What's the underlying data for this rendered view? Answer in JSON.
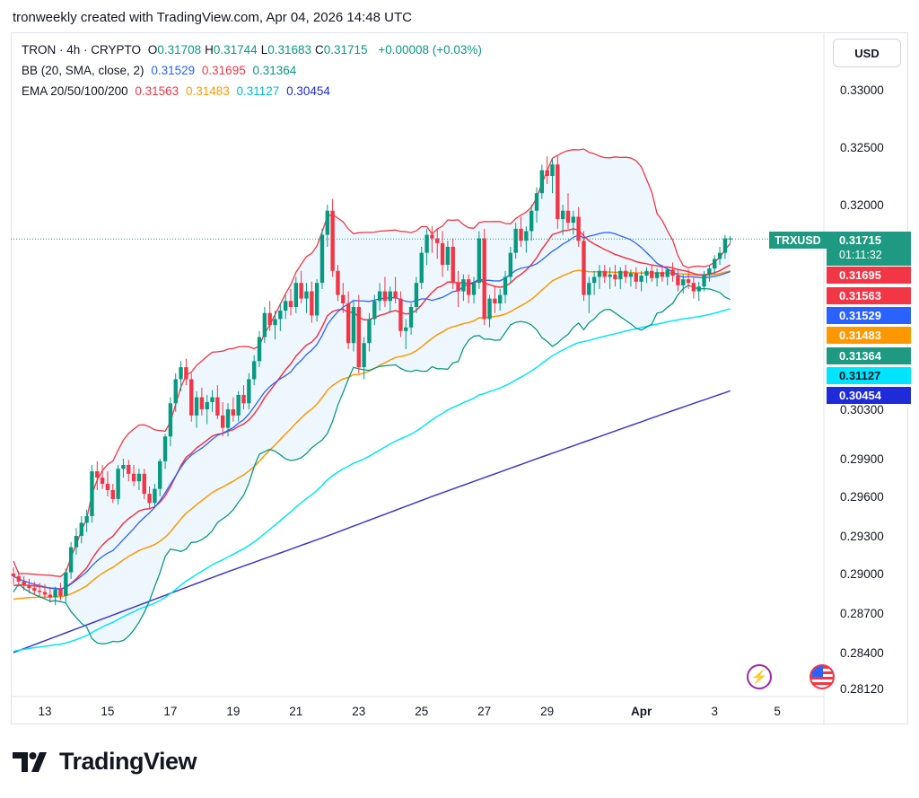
{
  "header": {
    "caption": "tronweekly created with TradingView.com, Apr 04, 2026 14:48 UTC"
  },
  "legend": {
    "symbol": "TRON · 4h · CRYPTO",
    "ohlc": [
      {
        "k": "O",
        "v": "0.31708"
      },
      {
        "k": "H",
        "v": "0.31744"
      },
      {
        "k": "L",
        "v": "0.31683"
      },
      {
        "k": "C",
        "v": "0.31715"
      }
    ],
    "change": "+0.00008 (+0.03%)",
    "bb_label": "BB (20, SMA, close, 2)",
    "bb_values": [
      "0.31529",
      "0.31695",
      "0.31364"
    ],
    "ema_label": "EMA 20/50/100/200",
    "ema_values": [
      "0.31563",
      "0.31483",
      "0.31127",
      "0.30454"
    ]
  },
  "currency_button": "USD",
  "ticker": "TRXUSD",
  "last_price": "0.31715",
  "countdown": "01:11:32",
  "price_tags": [
    {
      "value": "0.31695",
      "color": "#f23645"
    },
    {
      "value": "0.31563",
      "color": "#f23645"
    },
    {
      "value": "0.31529",
      "color": "#2962ff"
    },
    {
      "value": "0.31483",
      "color": "#ff9800"
    },
    {
      "value": "0.31364",
      "color": "#1f9a82"
    },
    {
      "value": "0.31127",
      "color": "#00e5ff"
    },
    {
      "value": "0.30454",
      "color": "#1f2bd8"
    }
  ],
  "brand": {
    "name": "TradingView"
  },
  "icons": {
    "alert": "lightning-icon",
    "event": "us-flag-icon",
    "logo": "tradingview-logo-icon"
  },
  "colors": {
    "up": "#089981",
    "down": "#f23645",
    "bb_basis": "#2962ff",
    "bb_upper": "#f23645",
    "bb_lower": "#089981",
    "bb_fill": "#e3f2fd",
    "ema20": "#f23645",
    "ema50": "#ff9800",
    "ema100": "#00e5ff",
    "ema200": "#3f37c9"
  },
  "chart_data": {
    "type": "candlestick",
    "timeframe": "4h",
    "y_axis_ticks": [
      "0.33000",
      "0.32500",
      "0.32000",
      "0.30300",
      "0.29900",
      "0.29600",
      "0.29300",
      "0.29000",
      "0.28700",
      "0.28400",
      "0.28120"
    ],
    "y_axis_tick_values": [
      0.33,
      0.325,
      0.32,
      0.303,
      0.299,
      0.296,
      0.293,
      0.29,
      0.287,
      0.284,
      0.2812
    ],
    "x_axis_ticks": [
      "13",
      "15",
      "17",
      "19",
      "21",
      "23",
      "25",
      "27",
      "29",
      "Apr",
      "3",
      "5"
    ],
    "x_axis_tick_bars": [
      6,
      18,
      30,
      42,
      54,
      66,
      78,
      90,
      102,
      120,
      134,
      146
    ],
    "candles_ohlc": [
      [
        0.29,
        0.2905,
        0.2892,
        0.2898
      ],
      [
        0.2898,
        0.2902,
        0.289,
        0.2894
      ],
      [
        0.2894,
        0.2898,
        0.2887,
        0.2891
      ],
      [
        0.2891,
        0.2896,
        0.2885,
        0.2889
      ],
      [
        0.2889,
        0.2894,
        0.2884,
        0.2887
      ],
      [
        0.2887,
        0.2893,
        0.2883,
        0.2886
      ],
      [
        0.2886,
        0.2892,
        0.2881,
        0.2884
      ],
      [
        0.2884,
        0.289,
        0.2878,
        0.2882
      ],
      [
        0.2882,
        0.289,
        0.2876,
        0.2888
      ],
      [
        0.2888,
        0.2893,
        0.288,
        0.2883
      ],
      [
        0.2883,
        0.2904,
        0.2878,
        0.2901
      ],
      [
        0.2901,
        0.2925,
        0.2896,
        0.2921
      ],
      [
        0.2921,
        0.2936,
        0.2915,
        0.293
      ],
      [
        0.293,
        0.2945,
        0.2924,
        0.294
      ],
      [
        0.294,
        0.295,
        0.2933,
        0.2945
      ],
      [
        0.2945,
        0.2985,
        0.294,
        0.298
      ],
      [
        0.298,
        0.2988,
        0.2965,
        0.2975
      ],
      [
        0.2975,
        0.2985,
        0.2966,
        0.297
      ],
      [
        0.297,
        0.298,
        0.296,
        0.2965
      ],
      [
        0.2965,
        0.297,
        0.2955,
        0.2958
      ],
      [
        0.2958,
        0.2985,
        0.2954,
        0.2982
      ],
      [
        0.2982,
        0.299,
        0.2975,
        0.2985
      ],
      [
        0.2985,
        0.2989,
        0.2972,
        0.2978
      ],
      [
        0.2978,
        0.2985,
        0.2968,
        0.2972
      ],
      [
        0.2972,
        0.2982,
        0.2965,
        0.2978
      ],
      [
        0.2978,
        0.2982,
        0.2958,
        0.2962
      ],
      [
        0.2962,
        0.2968,
        0.295,
        0.2955
      ],
      [
        0.2955,
        0.297,
        0.2952,
        0.2966
      ],
      [
        0.2966,
        0.299,
        0.296,
        0.2988
      ],
      [
        0.2988,
        0.301,
        0.2982,
        0.3008
      ],
      [
        0.3008,
        0.304,
        0.3,
        0.3035
      ],
      [
        0.3035,
        0.306,
        0.3028,
        0.3055
      ],
      [
        0.3055,
        0.307,
        0.3045,
        0.3065
      ],
      [
        0.3065,
        0.3072,
        0.305,
        0.3055
      ],
      [
        0.3055,
        0.306,
        0.302,
        0.3025
      ],
      [
        0.3025,
        0.3045,
        0.3015,
        0.304
      ],
      [
        0.304,
        0.3048,
        0.3025,
        0.303
      ],
      [
        0.303,
        0.3042,
        0.3018,
        0.3036
      ],
      [
        0.3036,
        0.3046,
        0.3028,
        0.304
      ],
      [
        0.304,
        0.305,
        0.3022,
        0.3025
      ],
      [
        0.3025,
        0.3036,
        0.3008,
        0.3015
      ],
      [
        0.3015,
        0.3035,
        0.3008,
        0.303
      ],
      [
        0.303,
        0.304,
        0.302,
        0.3025
      ],
      [
        0.3025,
        0.3045,
        0.302,
        0.3042
      ],
      [
        0.3042,
        0.305,
        0.303,
        0.3035
      ],
      [
        0.3035,
        0.306,
        0.303,
        0.3055
      ],
      [
        0.3055,
        0.3075,
        0.305,
        0.307
      ],
      [
        0.307,
        0.3095,
        0.3065,
        0.309
      ],
      [
        0.309,
        0.3115,
        0.3085,
        0.311
      ],
      [
        0.311,
        0.312,
        0.3095,
        0.31
      ],
      [
        0.31,
        0.3112,
        0.3088,
        0.3105
      ],
      [
        0.3105,
        0.3118,
        0.3095,
        0.3112
      ],
      [
        0.3112,
        0.3125,
        0.3105,
        0.312
      ],
      [
        0.312,
        0.313,
        0.3108,
        0.3115
      ],
      [
        0.3115,
        0.314,
        0.311,
        0.3135
      ],
      [
        0.3135,
        0.3145,
        0.3118,
        0.3122
      ],
      [
        0.3122,
        0.3135,
        0.311,
        0.3128
      ],
      [
        0.3128,
        0.3136,
        0.3102,
        0.3108
      ],
      [
        0.3108,
        0.3138,
        0.3103,
        0.3135
      ],
      [
        0.3135,
        0.318,
        0.313,
        0.3175
      ],
      [
        0.3175,
        0.32,
        0.3165,
        0.3195
      ],
      [
        0.3195,
        0.3205,
        0.314,
        0.3145
      ],
      [
        0.3145,
        0.315,
        0.312,
        0.3125
      ],
      [
        0.3125,
        0.3135,
        0.311,
        0.3118
      ],
      [
        0.3118,
        0.3128,
        0.308,
        0.3085
      ],
      [
        0.3085,
        0.312,
        0.3078,
        0.3115
      ],
      [
        0.3115,
        0.3125,
        0.306,
        0.3065
      ],
      [
        0.3065,
        0.309,
        0.3055,
        0.3085
      ],
      [
        0.3085,
        0.311,
        0.3078,
        0.3105
      ],
      [
        0.3105,
        0.3125,
        0.31,
        0.312
      ],
      [
        0.312,
        0.3135,
        0.3112,
        0.3128
      ],
      [
        0.3128,
        0.314,
        0.3115,
        0.312
      ],
      [
        0.312,
        0.3132,
        0.311,
        0.3128
      ],
      [
        0.3128,
        0.314,
        0.3118,
        0.3122
      ],
      [
        0.3122,
        0.3128,
        0.309,
        0.3095
      ],
      [
        0.3095,
        0.3105,
        0.308,
        0.3098
      ],
      [
        0.3098,
        0.3118,
        0.3092,
        0.3115
      ],
      [
        0.3115,
        0.314,
        0.311,
        0.3135
      ],
      [
        0.3135,
        0.3165,
        0.313,
        0.316
      ],
      [
        0.316,
        0.318,
        0.315,
        0.3175
      ],
      [
        0.3175,
        0.3182,
        0.316,
        0.3172
      ],
      [
        0.3172,
        0.318,
        0.3155,
        0.3168
      ],
      [
        0.3168,
        0.3178,
        0.314,
        0.315
      ],
      [
        0.315,
        0.317,
        0.3145,
        0.3165
      ],
      [
        0.3165,
        0.3172,
        0.313,
        0.3135
      ],
      [
        0.3135,
        0.3145,
        0.3115,
        0.3128
      ],
      [
        0.3128,
        0.3142,
        0.312,
        0.3138
      ],
      [
        0.3138,
        0.3142,
        0.3118,
        0.3125
      ],
      [
        0.3125,
        0.314,
        0.3118,
        0.3135
      ],
      [
        0.3135,
        0.3178,
        0.313,
        0.3172
      ],
      [
        0.3172,
        0.318,
        0.31,
        0.3105
      ],
      [
        0.3105,
        0.3125,
        0.3098,
        0.3122
      ],
      [
        0.3122,
        0.3132,
        0.311,
        0.3118
      ],
      [
        0.3118,
        0.313,
        0.3112,
        0.3125
      ],
      [
        0.3125,
        0.3145,
        0.3118,
        0.314
      ],
      [
        0.314,
        0.3165,
        0.3135,
        0.316
      ],
      [
        0.316,
        0.3185,
        0.3155,
        0.318
      ],
      [
        0.318,
        0.319,
        0.3165,
        0.317
      ],
      [
        0.317,
        0.3182,
        0.316,
        0.3178
      ],
      [
        0.3178,
        0.32,
        0.317,
        0.3195
      ],
      [
        0.3195,
        0.3215,
        0.3185,
        0.321
      ],
      [
        0.321,
        0.3235,
        0.3205,
        0.323
      ],
      [
        0.323,
        0.3242,
        0.3218,
        0.3225
      ],
      [
        0.3225,
        0.324,
        0.321,
        0.3235
      ],
      [
        0.3235,
        0.3242,
        0.318,
        0.3188
      ],
      [
        0.3188,
        0.32,
        0.3175,
        0.3195
      ],
      [
        0.3195,
        0.321,
        0.318,
        0.3185
      ],
      [
        0.3185,
        0.3195,
        0.3175,
        0.319
      ],
      [
        0.319,
        0.3198,
        0.3165,
        0.317
      ],
      [
        0.317,
        0.3178,
        0.312,
        0.3125
      ],
      [
        0.3125,
        0.314,
        0.311,
        0.3135
      ],
      [
        0.3135,
        0.3145,
        0.3125,
        0.314
      ],
      [
        0.314,
        0.315,
        0.313,
        0.3145
      ],
      [
        0.3145,
        0.315,
        0.3135,
        0.314
      ],
      [
        0.314,
        0.3148,
        0.313,
        0.3142
      ],
      [
        0.3142,
        0.315,
        0.3132,
        0.3138
      ],
      [
        0.3138,
        0.3148,
        0.313,
        0.3145
      ],
      [
        0.3145,
        0.315,
        0.3135,
        0.314
      ],
      [
        0.314,
        0.3146,
        0.3132,
        0.3143
      ],
      [
        0.3143,
        0.3148,
        0.313,
        0.3136
      ],
      [
        0.3136,
        0.3145,
        0.3128,
        0.3141
      ],
      [
        0.3141,
        0.3148,
        0.3135,
        0.3145
      ],
      [
        0.3145,
        0.315,
        0.3136,
        0.3139
      ],
      [
        0.3139,
        0.3147,
        0.3132,
        0.3144
      ],
      [
        0.3144,
        0.315,
        0.3136,
        0.314
      ],
      [
        0.314,
        0.3148,
        0.3133,
        0.3146
      ],
      [
        0.3146,
        0.3152,
        0.3136,
        0.3141
      ],
      [
        0.3141,
        0.3146,
        0.3128,
        0.3133
      ],
      [
        0.3133,
        0.3142,
        0.3126,
        0.3138
      ],
      [
        0.3138,
        0.3146,
        0.313,
        0.3135
      ],
      [
        0.3135,
        0.314,
        0.3122,
        0.3128
      ],
      [
        0.3128,
        0.3136,
        0.312,
        0.3132
      ],
      [
        0.3132,
        0.3145,
        0.3128,
        0.3142
      ],
      [
        0.3142,
        0.315,
        0.3136,
        0.3147
      ],
      [
        0.3147,
        0.3158,
        0.3142,
        0.3155
      ],
      [
        0.3155,
        0.3165,
        0.315,
        0.316
      ],
      [
        0.316,
        0.3175,
        0.3155,
        0.3172
      ],
      [
        0.3171,
        0.3174,
        0.3168,
        0.3172
      ]
    ],
    "indicators": {
      "bollinger": {
        "period": 20,
        "stdev": 2,
        "basis": 0.31529,
        "upper": 0.31695,
        "lower": 0.31364
      },
      "ema": {
        "20": 0.31563,
        "50": 0.31483,
        "100": 0.31127,
        "200": 0.30454
      }
    }
  }
}
